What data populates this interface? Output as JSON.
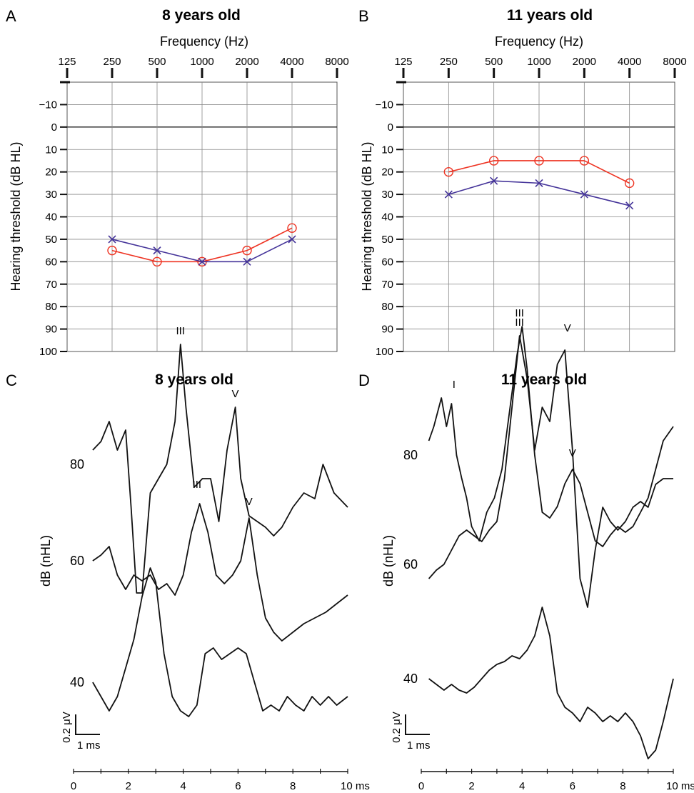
{
  "panels": {
    "A": {
      "letter": "A",
      "title": "8 years old"
    },
    "B": {
      "letter": "B",
      "title": "11 years old"
    },
    "C": {
      "letter": "C",
      "title": "8 years old"
    },
    "D": {
      "letter": "D",
      "title": "11 years old"
    }
  },
  "colors": {
    "red_ear": "#ee3322",
    "blue_ear": "#443399",
    "trace": "#111111",
    "grid": "#555555"
  },
  "chart_data": [
    {
      "type": "line",
      "panel": "A",
      "title": "8 years old",
      "xlabel": "Frequency (Hz)",
      "ylabel": "Hearing threshold (dB HL)",
      "x_scale": "log2",
      "x_ticks": [
        "125",
        "250",
        "500",
        "1000",
        "2000",
        "4000",
        "8000"
      ],
      "y_ticks": [
        "−10",
        "0",
        "10",
        "20",
        "30",
        "40",
        "50",
        "60",
        "70",
        "80",
        "90",
        "100"
      ],
      "ylim": [
        -20,
        100
      ],
      "y_inverted": true,
      "x": [
        250,
        500,
        1000,
        2000,
        4000
      ],
      "series": [
        {
          "marker": "circle",
          "color": "#ee3322",
          "values": [
            55,
            60,
            60,
            55,
            45
          ]
        },
        {
          "marker": "cross",
          "color": "#443399",
          "values": [
            50,
            55,
            60,
            60,
            50
          ]
        }
      ]
    },
    {
      "type": "line",
      "panel": "B",
      "title": "11 years old",
      "xlabel": "Frequency (Hz)",
      "ylabel": "Hearing threshold (dB HL)",
      "x_scale": "log2",
      "x_ticks": [
        "125",
        "250",
        "500",
        "1000",
        "2000",
        "4000",
        "8000"
      ],
      "y_ticks": [
        "−10",
        "0",
        "10",
        "20",
        "30",
        "40",
        "50",
        "60",
        "70",
        "80",
        "90",
        "100"
      ],
      "ylim": [
        -20,
        100
      ],
      "y_inverted": true,
      "x": [
        250,
        500,
        1000,
        2000,
        4000
      ],
      "series": [
        {
          "marker": "circle",
          "color": "#ee3322",
          "values": [
            20,
            15,
            15,
            15,
            25
          ]
        },
        {
          "marker": "cross",
          "color": "#443399",
          "values": [
            30,
            24,
            25,
            30,
            35
          ]
        }
      ]
    },
    {
      "type": "line",
      "panel": "C",
      "title": "8 years old",
      "ylabel": "dB (nHL)",
      "x_ticks": [
        "0",
        "2",
        "4",
        "6",
        "8",
        "10 ms"
      ],
      "xlim": [
        0,
        10
      ],
      "scale_bar": {
        "vertical": "0.2 μV",
        "horizontal": "1 ms"
      },
      "traces": [
        {
          "level": "80",
          "x": [
            0.7,
            1.0,
            1.3,
            1.6,
            1.9,
            2.1,
            2.3,
            2.5,
            2.8,
            3.1,
            3.4,
            3.7,
            3.9,
            4.1,
            4.4,
            4.7,
            5.0,
            5.3,
            5.6,
            5.9,
            6.1,
            6.4,
            6.7,
            7.0,
            7.3,
            7.6,
            8.0,
            8.4,
            8.8,
            9.1,
            9.5,
            10.0
          ],
          "y": [
            0.05,
            0.08,
            0.15,
            0.05,
            0.12,
            -0.15,
            -0.45,
            -0.45,
            -0.1,
            -0.05,
            0.0,
            0.15,
            0.42,
            0.2,
            -0.08,
            -0.05,
            -0.05,
            -0.2,
            0.05,
            0.2,
            -0.05,
            -0.18,
            -0.2,
            -0.22,
            -0.25,
            -0.22,
            -0.15,
            -0.1,
            -0.12,
            0.0,
            -0.1,
            -0.15
          ],
          "labels": [
            {
              "text": "III",
              "x": 3.9,
              "y": 0.42
            },
            {
              "text": "V",
              "x": 5.9,
              "y": 0.2
            }
          ]
        },
        {
          "level": "60",
          "x": [
            0.7,
            1.0,
            1.3,
            1.6,
            1.9,
            2.2,
            2.5,
            2.8,
            3.1,
            3.4,
            3.7,
            4.0,
            4.3,
            4.6,
            4.9,
            5.2,
            5.5,
            5.8,
            6.1,
            6.4,
            6.7,
            7.0,
            7.3,
            7.6,
            8.0,
            8.4,
            8.8,
            9.2,
            9.6,
            10.0
          ],
          "y": [
            0.0,
            0.02,
            0.05,
            -0.05,
            -0.1,
            -0.05,
            -0.07,
            -0.05,
            -0.1,
            -0.08,
            -0.12,
            -0.05,
            0.1,
            0.2,
            0.1,
            -0.05,
            -0.08,
            -0.05,
            0.0,
            0.15,
            -0.05,
            -0.2,
            -0.25,
            -0.28,
            -0.25,
            -0.22,
            -0.2,
            -0.18,
            -0.15,
            -0.12
          ],
          "labels": [
            {
              "text": "III",
              "x": 4.5,
              "y": 0.22
            },
            {
              "text": "V",
              "x": 6.4,
              "y": 0.16
            }
          ]
        },
        {
          "level": "40",
          "x": [
            0.7,
            1.0,
            1.3,
            1.6,
            1.9,
            2.2,
            2.5,
            2.8,
            3.0,
            3.3,
            3.6,
            3.9,
            4.2,
            4.5,
            4.8,
            5.1,
            5.4,
            5.7,
            6.0,
            6.3,
            6.6,
            6.9,
            7.2,
            7.5,
            7.8,
            8.1,
            8.4,
            8.7,
            9.0,
            9.3,
            9.6,
            10.0
          ],
          "y": [
            0.0,
            -0.05,
            -0.1,
            -0.05,
            0.05,
            0.15,
            0.3,
            0.4,
            0.35,
            0.1,
            -0.05,
            -0.1,
            -0.12,
            -0.08,
            0.1,
            0.12,
            0.08,
            0.1,
            0.12,
            0.1,
            0.0,
            -0.1,
            -0.08,
            -0.1,
            -0.05,
            -0.08,
            -0.1,
            -0.05,
            -0.08,
            -0.05,
            -0.08,
            -0.05
          ],
          "labels": []
        }
      ]
    },
    {
      "type": "line",
      "panel": "D",
      "title": "11 years old",
      "ylabel": "dB (nHL)",
      "x_ticks": [
        "0",
        "2",
        "4",
        "6",
        "8",
        "10 ms"
      ],
      "xlim": [
        0,
        10
      ],
      "scale_bar": {
        "vertical": "0.2 μV",
        "horizontal": "1 ms"
      },
      "traces": [
        {
          "level": "80",
          "x": [
            0.3,
            0.5,
            0.8,
            1.0,
            1.2,
            1.4,
            1.6,
            1.8,
            2.0,
            2.3,
            2.6,
            2.9,
            3.2,
            3.5,
            3.8,
            4.0,
            4.2,
            4.5,
            4.8,
            5.1,
            5.4,
            5.7,
            6.0,
            6.3,
            6.6,
            6.9,
            7.2,
            7.5,
            7.8,
            8.1,
            8.4,
            8.7,
            9.0,
            9.3,
            9.6,
            10.0
          ],
          "y": [
            0.05,
            0.1,
            0.2,
            0.1,
            0.18,
            0.0,
            -0.08,
            -0.15,
            -0.25,
            -0.3,
            -0.2,
            -0.15,
            -0.05,
            0.15,
            0.35,
            0.45,
            0.3,
            0.0,
            -0.2,
            -0.22,
            -0.18,
            -0.1,
            -0.05,
            -0.1,
            -0.2,
            -0.3,
            -0.32,
            -0.28,
            -0.25,
            -0.27,
            -0.25,
            -0.2,
            -0.15,
            -0.05,
            0.05,
            0.1
          ],
          "labels": [
            {
              "text": "I",
              "x": 1.3,
              "y": 0.2
            },
            {
              "text": "III",
              "x": 3.9,
              "y": 0.45
            },
            {
              "text": "V",
              "x": 6.0,
              "y": -0.04
            }
          ]
        },
        {
          "level": "60",
          "x": [
            0.3,
            0.6,
            0.9,
            1.2,
            1.5,
            1.8,
            2.1,
            2.4,
            2.7,
            3.0,
            3.3,
            3.6,
            3.9,
            4.2,
            4.5,
            4.8,
            5.1,
            5.4,
            5.7,
            6.0,
            6.3,
            6.6,
            6.9,
            7.2,
            7.5,
            7.8,
            8.1,
            8.4,
            8.7,
            9.0,
            9.3,
            9.6,
            10.0
          ],
          "y": [
            -0.05,
            -0.02,
            0.0,
            0.05,
            0.1,
            0.12,
            0.1,
            0.08,
            0.12,
            0.15,
            0.3,
            0.55,
            0.8,
            0.65,
            0.4,
            0.55,
            0.5,
            0.7,
            0.75,
            0.4,
            -0.05,
            -0.15,
            0.05,
            0.2,
            0.15,
            0.12,
            0.15,
            0.2,
            0.22,
            0.2,
            0.28,
            0.3,
            0.3
          ],
          "labels": [
            {
              "text": "III",
              "x": 3.9,
              "y": 0.8
            },
            {
              "text": "V",
              "x": 5.8,
              "y": 0.78
            }
          ]
        },
        {
          "level": "40",
          "x": [
            0.3,
            0.6,
            0.9,
            1.2,
            1.5,
            1.8,
            2.1,
            2.4,
            2.7,
            3.0,
            3.3,
            3.6,
            3.9,
            4.2,
            4.5,
            4.8,
            5.1,
            5.4,
            5.7,
            6.0,
            6.3,
            6.6,
            6.9,
            7.2,
            7.5,
            7.8,
            8.1,
            8.4,
            8.7,
            9.0,
            9.3,
            9.6,
            10.0
          ],
          "y": [
            0.0,
            -0.02,
            -0.04,
            -0.02,
            -0.04,
            -0.05,
            -0.03,
            0.0,
            0.03,
            0.05,
            0.06,
            0.08,
            0.07,
            0.1,
            0.15,
            0.25,
            0.15,
            -0.05,
            -0.1,
            -0.12,
            -0.15,
            -0.1,
            -0.12,
            -0.15,
            -0.13,
            -0.15,
            -0.12,
            -0.15,
            -0.2,
            -0.28,
            -0.25,
            -0.15,
            0.0
          ],
          "labels": []
        }
      ]
    }
  ]
}
